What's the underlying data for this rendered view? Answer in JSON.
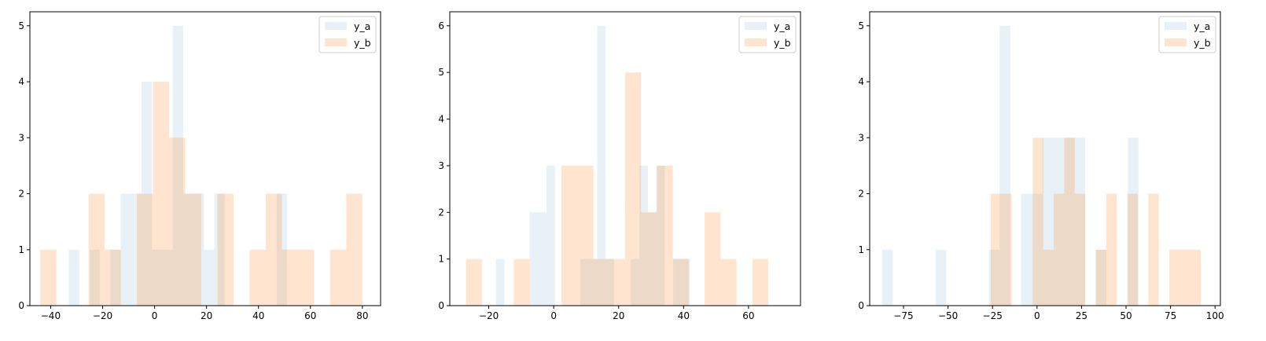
{
  "colors": {
    "y_a": "#1f77b4",
    "y_b": "#ff7f0e",
    "y_a_alpha": 0.1,
    "y_b_alpha": 0.2
  },
  "chart_data": [
    {
      "type": "bar",
      "legend": {
        "placement": "top-right",
        "entries": [
          "y_a",
          "y_b"
        ]
      },
      "grid": false,
      "xlim": [
        -48,
        87
      ],
      "ylim": [
        0,
        5.25
      ],
      "xticks": [
        -40,
        -20,
        0,
        20,
        40,
        60,
        80
      ],
      "xtick_labels": [
        "−40",
        "−20",
        "0",
        "20",
        "40",
        "60",
        "80"
      ],
      "yticks": [
        0,
        1,
        2,
        3,
        4,
        5
      ],
      "ytick_labels": [
        "0",
        "1",
        "2",
        "3",
        "4",
        "5"
      ],
      "series": [
        {
          "name": "y_a",
          "bin_edges": [
            -37,
            -33,
            -29,
            -25,
            -21,
            -17,
            -13,
            -9,
            -5,
            -1,
            3,
            7,
            11,
            15,
            19,
            23,
            27,
            31,
            35,
            39,
            43,
            47,
            51
          ],
          "values": [
            0,
            1,
            0,
            1,
            0,
            1,
            2,
            2,
            4,
            1,
            1,
            5,
            2,
            2,
            1,
            2,
            0,
            0,
            0,
            0,
            0,
            2
          ]
        },
        {
          "name": "y_b",
          "bin_edges": [
            -44,
            -37.8,
            -31.6,
            -25.4,
            -19.2,
            -13,
            -6.8,
            -0.6,
            5.6,
            11.8,
            18,
            24.2,
            30.4,
            36.6,
            42.8,
            49,
            55.2,
            61.4,
            67.6,
            73.8,
            80
          ],
          "values": [
            1,
            0,
            0,
            2,
            1,
            0,
            2,
            4,
            3,
            2,
            0,
            2,
            0,
            1,
            2,
            1,
            1,
            0,
            1,
            2
          ]
        }
      ]
    },
    {
      "type": "bar",
      "legend": {
        "placement": "top-right",
        "entries": [
          "y_a",
          "y_b"
        ]
      },
      "grid": false,
      "xlim": [
        -32,
        76
      ],
      "ylim": [
        0,
        6.3
      ],
      "xticks": [
        -20,
        0,
        20,
        40,
        60
      ],
      "xtick_labels": [
        "−20",
        "0",
        "20",
        "40",
        "60"
      ],
      "yticks": [
        0,
        1,
        2,
        3,
        4,
        5,
        6
      ],
      "ytick_labels": [
        "0",
        "1",
        "2",
        "3",
        "4",
        "5",
        "6"
      ],
      "series": [
        {
          "name": "y_a",
          "bin_edges": [
            -23,
            -20.4,
            -17.8,
            -15.2,
            -12.6,
            -10,
            -7.4,
            -4.8,
            -2.2,
            0.4,
            3,
            5.6,
            8.2,
            10.8,
            13.4,
            16,
            18.6,
            21.2,
            23.8,
            26.4,
            29,
            31.6,
            34.2,
            36.8,
            39.4,
            42,
            44.6
          ],
          "values": [
            0,
            0,
            1,
            0,
            0,
            0,
            2,
            2,
            3,
            0,
            0,
            0,
            1,
            1,
            6,
            1,
            0,
            0,
            1,
            3,
            2,
            3,
            0,
            1,
            1,
            0
          ]
        },
        {
          "name": "y_b",
          "bin_edges": [
            -27,
            -22.1,
            -17.2,
            -12.3,
            -7.4,
            -2.5,
            2.4,
            7.3,
            12.2,
            17.1,
            22,
            26.9,
            31.8,
            36.7,
            41.6,
            46.5,
            51.4,
            56.3,
            61.2,
            66.1,
            71
          ],
          "values": [
            1,
            0,
            0,
            1,
            0,
            0,
            3,
            3,
            1,
            1,
            5,
            2,
            3,
            1,
            0,
            2,
            1,
            0,
            1,
            0
          ]
        }
      ]
    },
    {
      "type": "bar",
      "legend": {
        "placement": "top-right",
        "entries": [
          "y_a",
          "y_b"
        ]
      },
      "grid": false,
      "xlim": [
        -94,
        103
      ],
      "ylim": [
        0,
        5.25
      ],
      "xticks": [
        -75,
        -50,
        -25,
        0,
        25,
        50,
        75,
        100
      ],
      "xtick_labels": [
        "−75",
        "−50",
        "−25",
        "0",
        "25",
        "50",
        "75",
        "100"
      ],
      "yticks": [
        0,
        1,
        2,
        3,
        4,
        5
      ],
      "ytick_labels": [
        "0",
        "1",
        "2",
        "3",
        "4",
        "5"
      ],
      "series": [
        {
          "name": "y_a",
          "bin_edges": [
            -87,
            -81,
            -75,
            -69,
            -63,
            -57,
            -51,
            -45,
            -39,
            -33,
            -27,
            -21,
            -15,
            -9,
            -3,
            3,
            9,
            15,
            21,
            27,
            33,
            39,
            45,
            51,
            57,
            63
          ],
          "values": [
            1,
            0,
            0,
            0,
            0,
            1,
            0,
            0,
            0,
            0,
            1,
            5,
            0,
            2,
            2,
            3,
            3,
            3,
            3,
            0,
            1,
            0,
            0,
            3,
            0
          ]
        },
        {
          "name": "y_b",
          "bin_edges": [
            -26,
            -20.1,
            -14.2,
            -8.3,
            -2.4,
            3.5,
            9.4,
            15.3,
            21.2,
            27.1,
            33,
            38.9,
            44.8,
            50.7,
            56.6,
            62.5,
            68.4,
            74.3,
            80.2,
            86.1,
            92
          ],
          "values": [
            2,
            2,
            0,
            0,
            3,
            1,
            2,
            3,
            2,
            0,
            1,
            2,
            0,
            2,
            0,
            2,
            0,
            1,
            1,
            1
          ]
        }
      ]
    }
  ]
}
